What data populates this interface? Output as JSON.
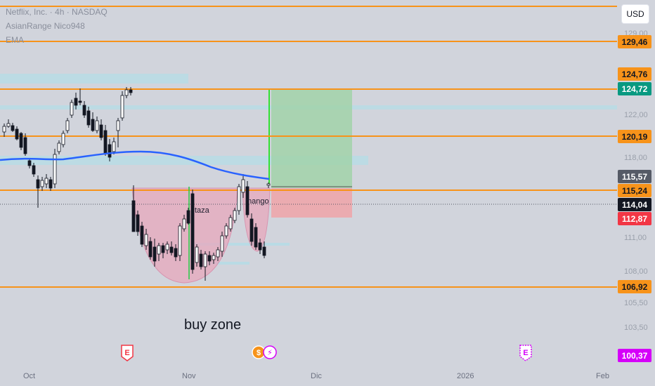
{
  "legend": {
    "symbol_line": "Netflix, Inc. · 4h · NASDAQ",
    "indicator1": "AsianRange Nico948",
    "indicator2": "EMA"
  },
  "currency_button": "USD",
  "price_badges": [
    {
      "value": "129,46",
      "kind": "level"
    },
    {
      "value": "124,76",
      "kind": "level"
    },
    {
      "value": "124,72",
      "kind": "target"
    },
    {
      "value": "120,19",
      "kind": "level"
    },
    {
      "value": "115,57",
      "kind": "ema"
    },
    {
      "value": "115,24",
      "kind": "level"
    },
    {
      "value": "114,04",
      "kind": "last"
    },
    {
      "value": "112,87",
      "kind": "stop"
    },
    {
      "value": "106,92",
      "kind": "level"
    },
    {
      "value": "100,37",
      "kind": "event"
    }
  ],
  "price_axis_ticks": [
    "129,00",
    "122,00",
    "118,00",
    "111,00",
    "108,00",
    "105,50",
    "103,50"
  ],
  "time_axis": [
    "Oct",
    "Nov",
    "Dic",
    "2026",
    "Feb"
  ],
  "annotations": {
    "pattern_left": "taza",
    "pattern_right": "mango",
    "zone_label": "buy zone"
  },
  "events": [
    {
      "name": "earnings",
      "glyph": "E"
    },
    {
      "name": "dividend",
      "glyph": "$"
    },
    {
      "name": "split",
      "glyph": "⚡"
    },
    {
      "name": "earnings-upcoming",
      "glyph": "E"
    }
  ],
  "colors": {
    "background": "#d1d4dc",
    "level_line": "#f7931a",
    "ema": "#2962ff",
    "target_zone": "#9fd2a6",
    "stop_zone": "#f0a3a8",
    "cup_fill": "#e8a8bd",
    "range_box": "#b6dce6",
    "candle_up": "#ffffff",
    "candle_down": "#131722",
    "badge_level": "#f7931a",
    "badge_target": "#089981",
    "badge_stop": "#f23645",
    "badge_last": "#131722",
    "badge_ema": "#555a66",
    "badge_event": "#d500f9"
  }
}
